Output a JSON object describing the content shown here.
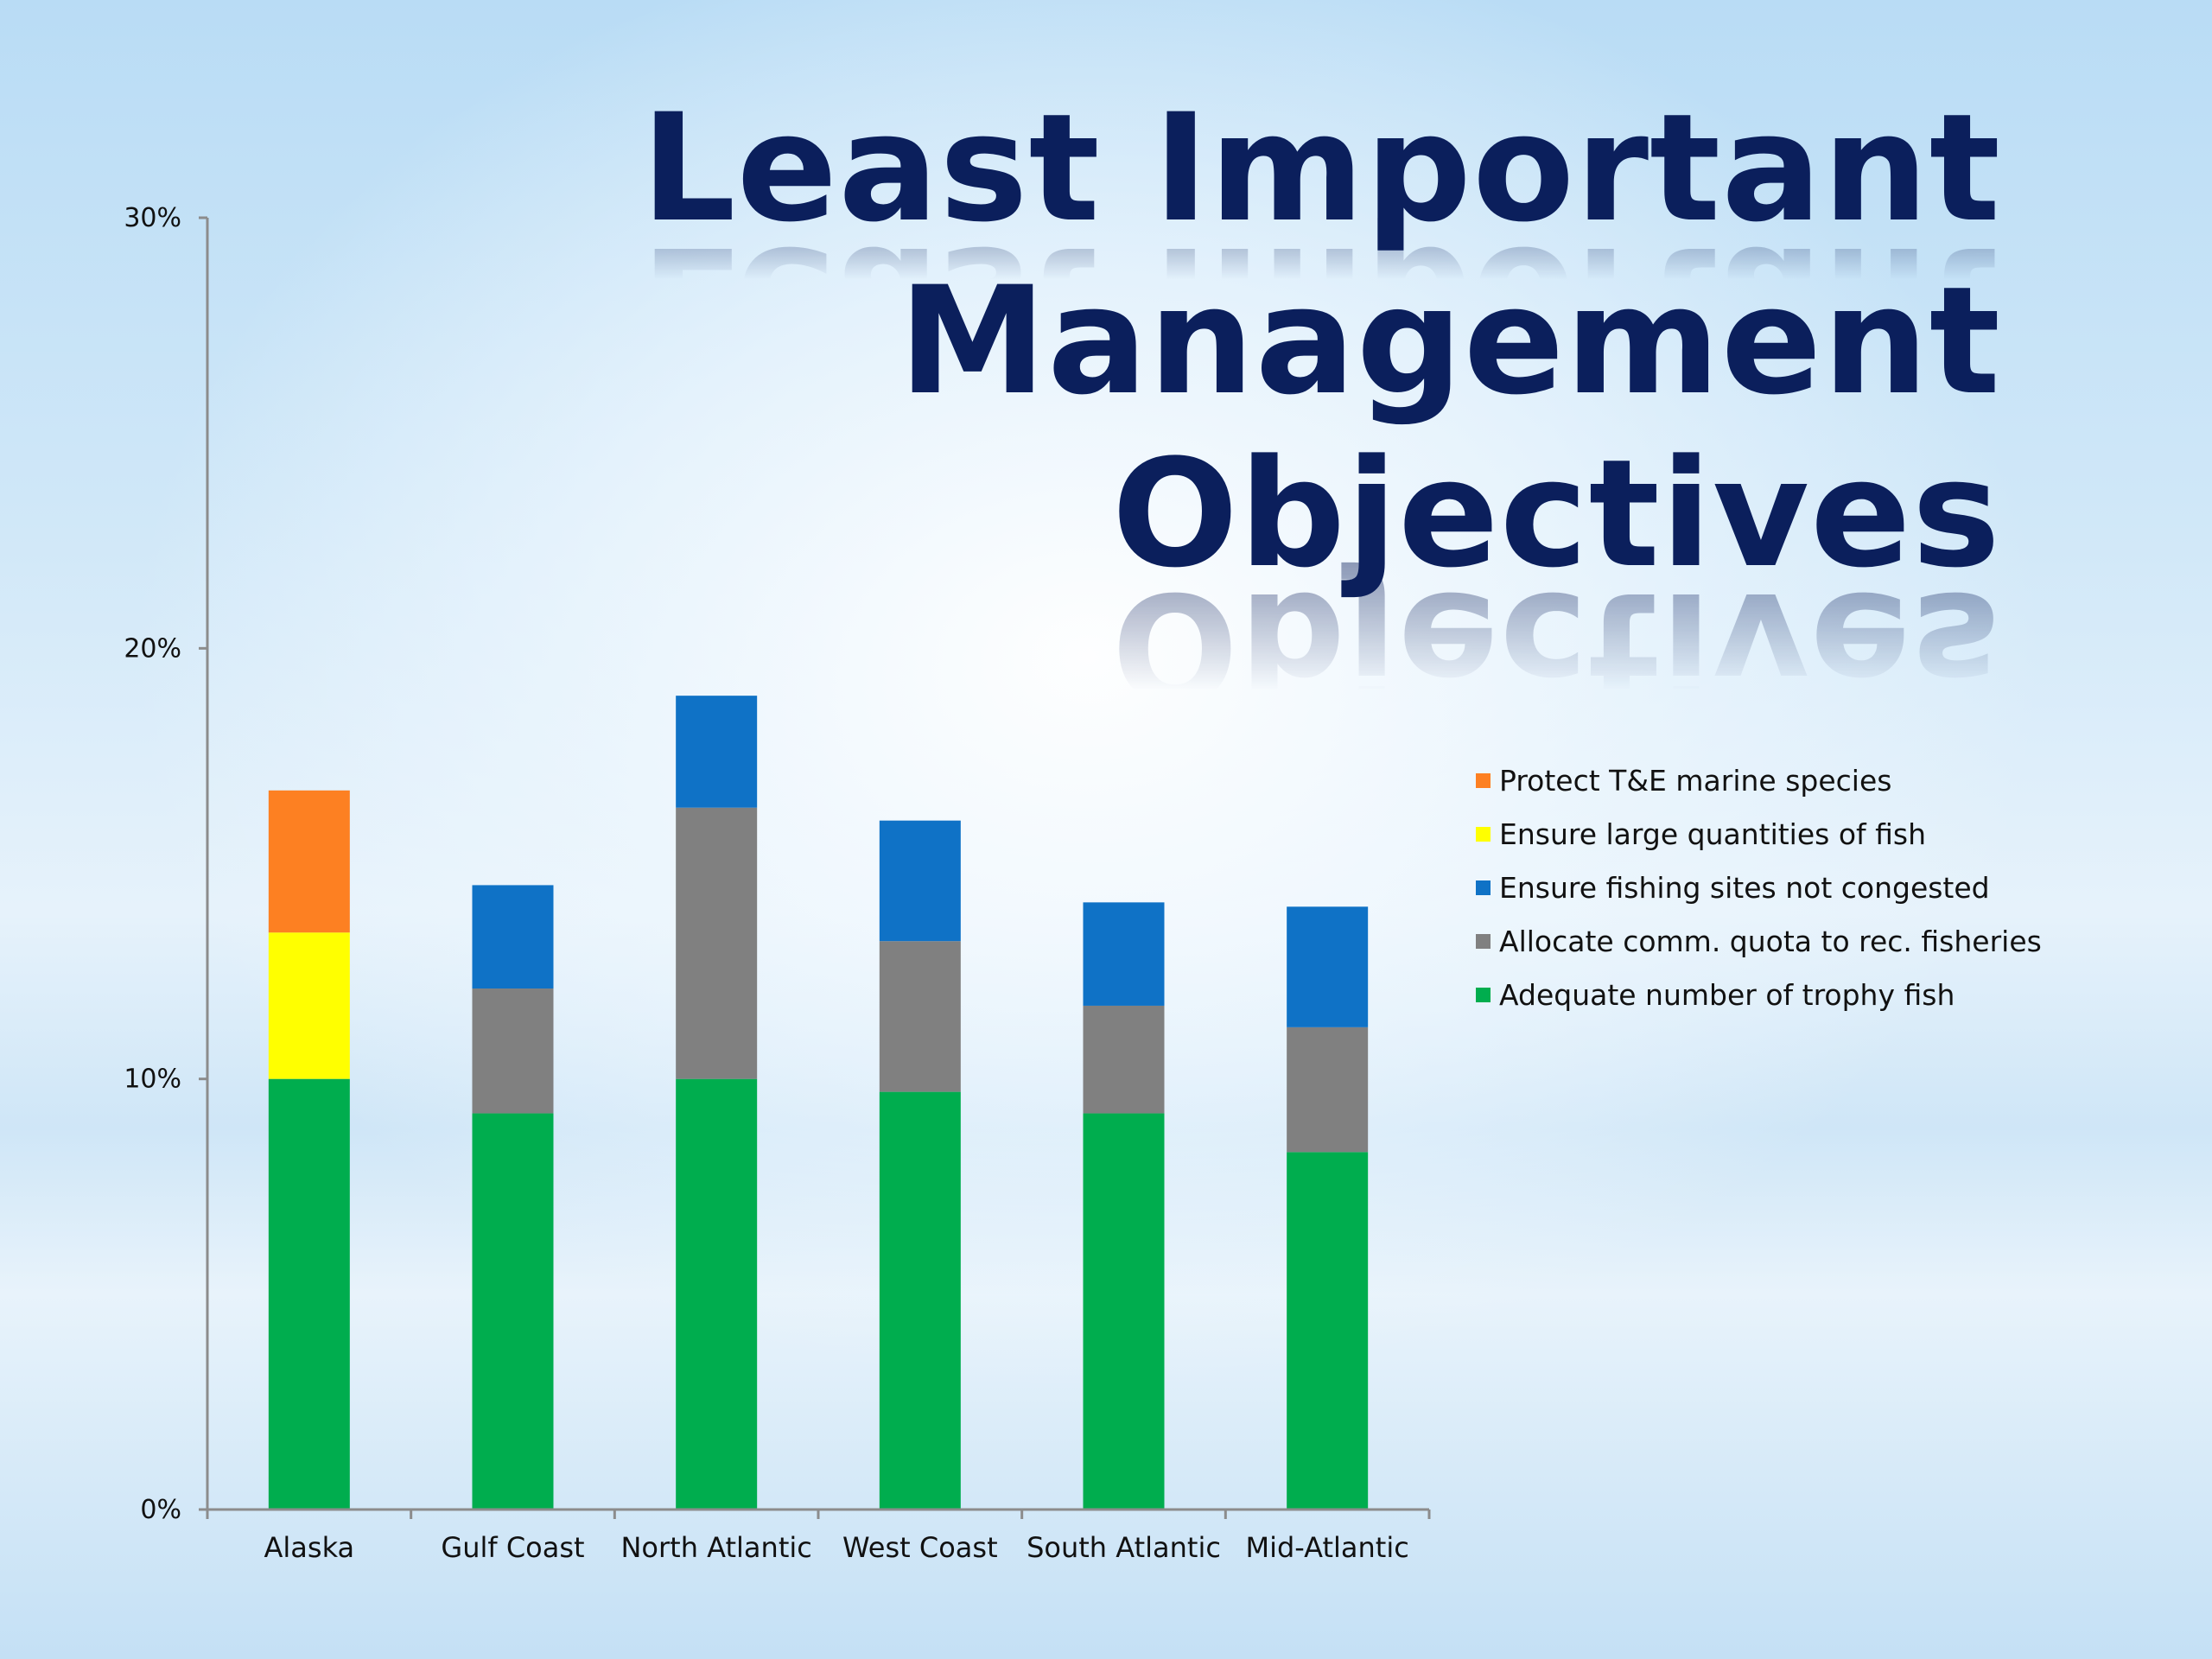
{
  "title": {
    "line1": "Least Important",
    "line2": "Management Objectives"
  },
  "chart_data": {
    "type": "bar",
    "stacked": true,
    "categories": [
      "Alaska",
      "Gulf Coast",
      "North Atlantic",
      "West Coast",
      "South Atlantic",
      "Mid-Atlantic"
    ],
    "series": [
      {
        "name": "Adequate number of trophy fish",
        "color": "#00ad4e",
        "values": [
          10.0,
          9.2,
          10.0,
          9.7,
          9.2,
          8.3
        ]
      },
      {
        "name": "Allocate comm. quota to rec. fisheries",
        "color": "#808080",
        "values": [
          0,
          2.9,
          6.3,
          3.5,
          2.5,
          2.9
        ]
      },
      {
        "name": "Ensure fishing sites not congested",
        "color": "#0f72c6",
        "values": [
          0,
          2.4,
          2.6,
          2.8,
          2.4,
          2.8
        ]
      },
      {
        "name": "Ensure large quantities of fish",
        "color": "#ffff00",
        "values": [
          3.4,
          0,
          0,
          0,
          0,
          0
        ]
      },
      {
        "name": "Protect T&E marine species",
        "color": "#fd8022",
        "values": [
          3.3,
          0,
          0,
          0,
          0,
          0
        ]
      }
    ],
    "legend_order": [
      "Protect T&E marine species",
      "Ensure large quantities of fish",
      "Ensure fishing sites not congested",
      "Allocate comm. quota to rec. fisheries",
      "Adequate number of trophy fish"
    ],
    "ylim": [
      0,
      30
    ],
    "yticks": [
      0,
      10,
      20,
      30
    ],
    "ytick_labels": [
      "0%",
      "10%",
      "20%",
      "30%"
    ],
    "legend_position": "right",
    "grid": false,
    "xlabel": "",
    "ylabel": ""
  }
}
